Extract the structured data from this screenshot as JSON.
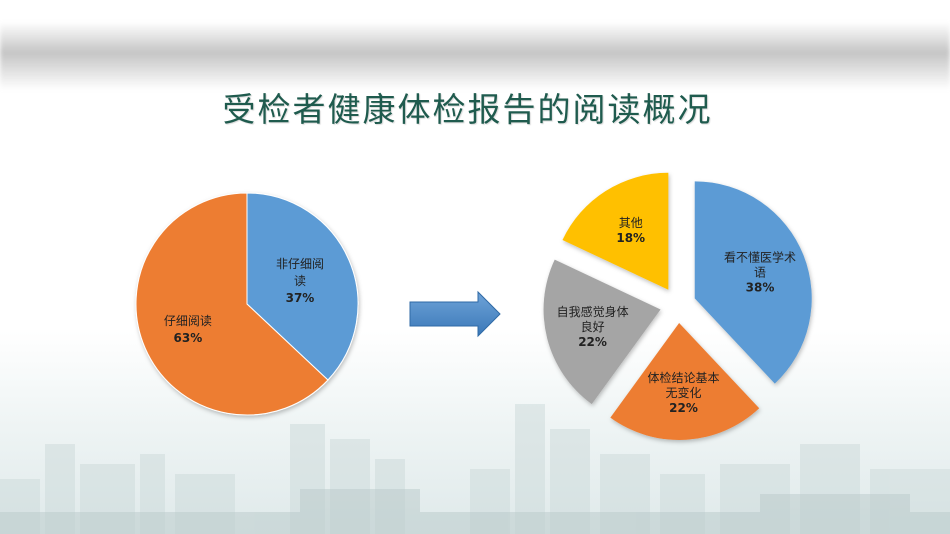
{
  "slide": {
    "title": "受检者健康体检报告的阅读概况"
  },
  "colors": {
    "blue": "#5b9bd5",
    "orange": "#ed7d31",
    "gray": "#a5a5a5",
    "yellow": "#ffc000",
    "title_green": "#1f5b4e"
  },
  "chart_data": [
    {
      "type": "pie",
      "title": "",
      "slices": [
        {
          "label_lines": [
            "非仔细阅",
            "读"
          ],
          "value": 37,
          "value_text": "37%",
          "color": "#5b9bd5"
        },
        {
          "label_lines": [
            "仔细阅读"
          ],
          "value": 63,
          "value_text": "63%",
          "color": "#ed7d31"
        }
      ]
    },
    {
      "type": "pie",
      "title": "",
      "exploded": true,
      "slices": [
        {
          "label_lines": [
            "看不懂医学术",
            "语"
          ],
          "value": 38,
          "value_text": "38%",
          "color": "#5b9bd5"
        },
        {
          "label_lines": [
            "体检结论基本",
            "无变化"
          ],
          "value": 22,
          "value_text": "22%",
          "color": "#ed7d31"
        },
        {
          "label_lines": [
            "自我感觉身体",
            "良好"
          ],
          "value": 22,
          "value_text": "22%",
          "color": "#a5a5a5"
        },
        {
          "label_lines": [
            "其他"
          ],
          "value": 18,
          "value_text": "18%",
          "color": "#ffc000"
        }
      ]
    }
  ]
}
